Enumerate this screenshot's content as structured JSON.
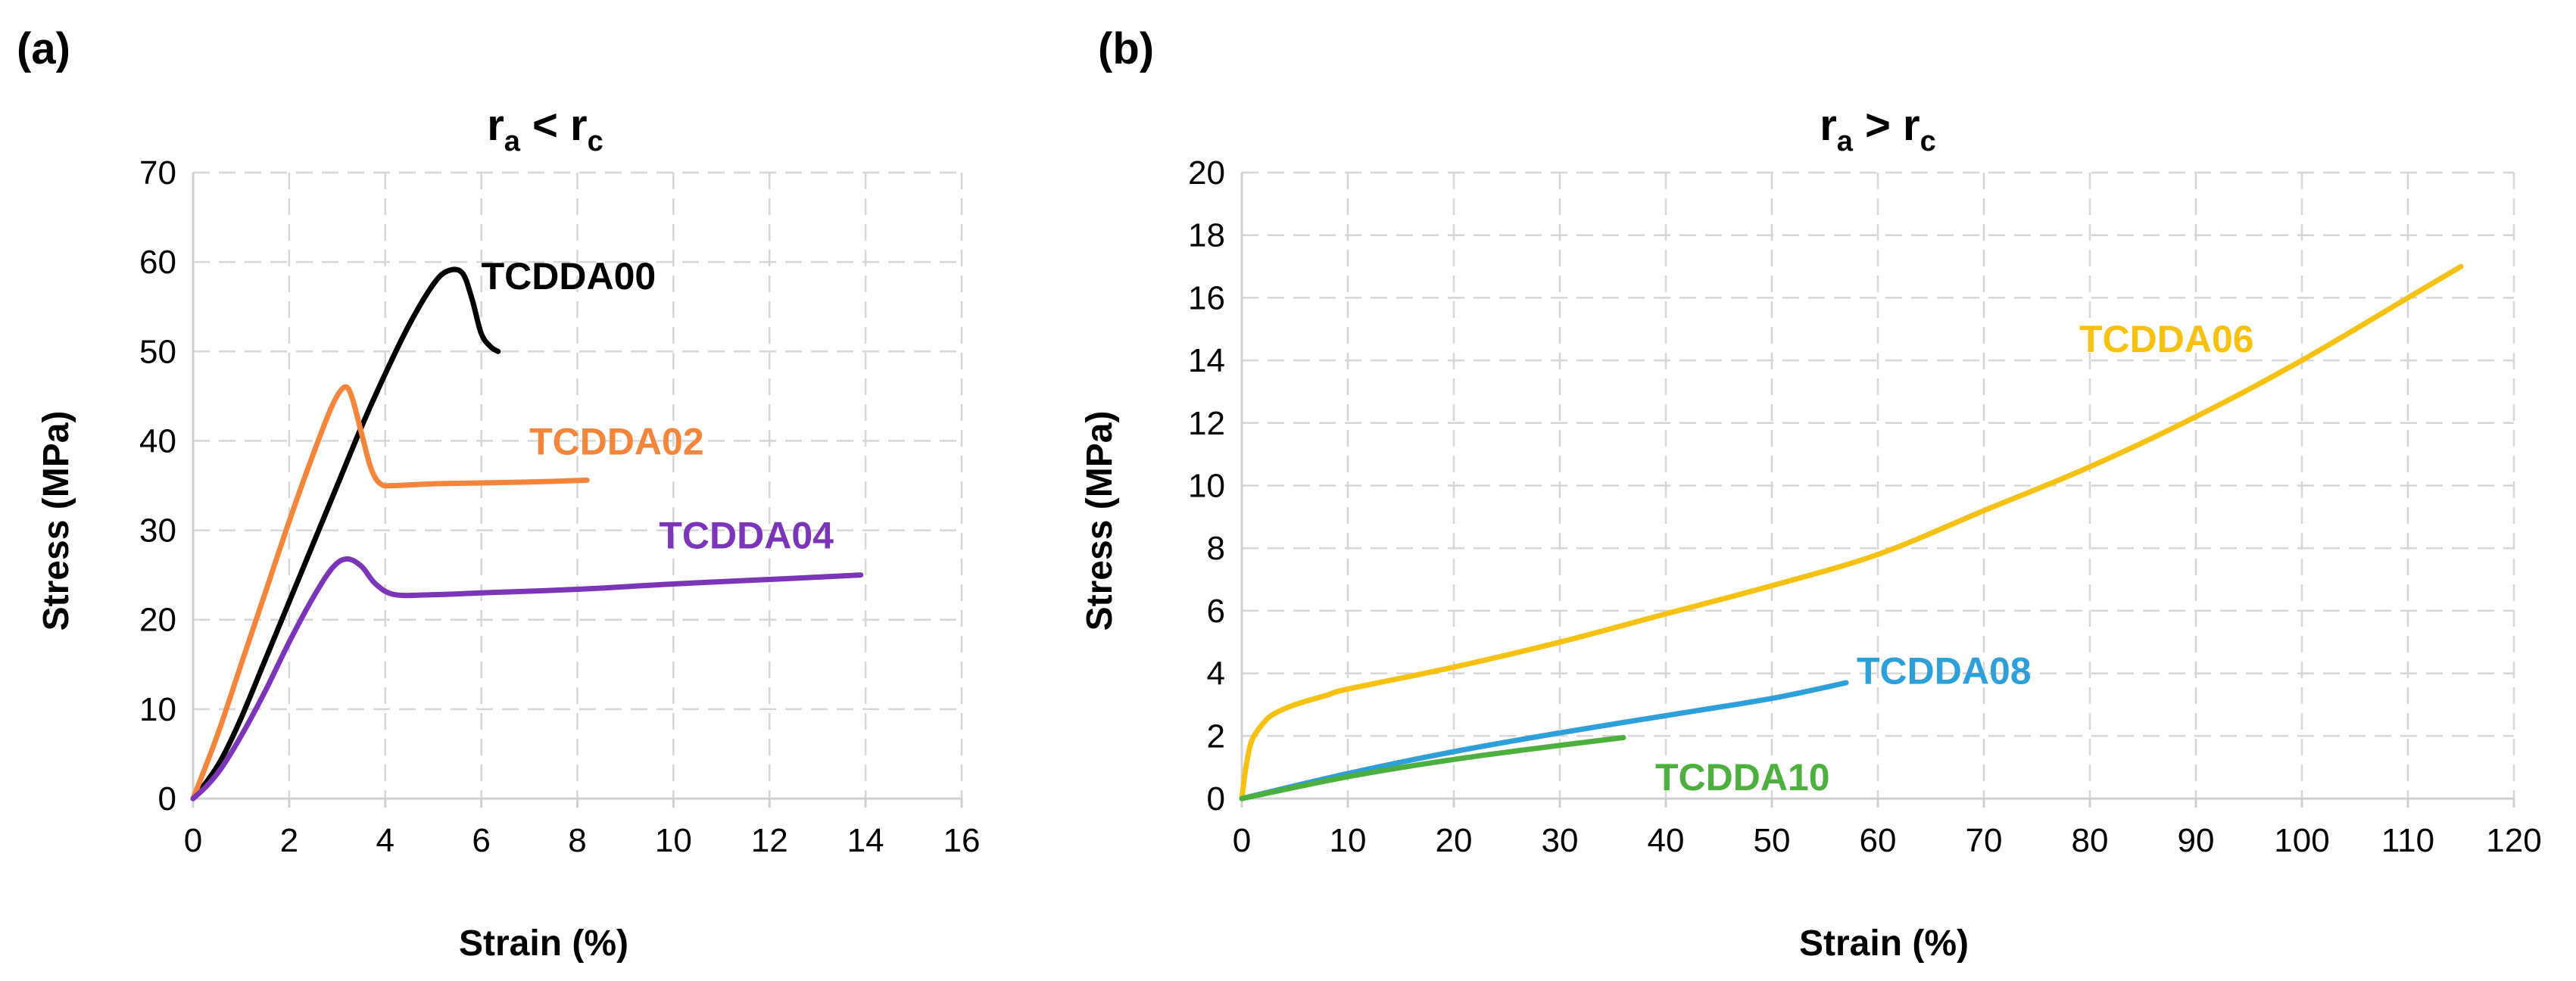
{
  "chart_data": [
    {
      "panel": "(a)",
      "type": "line",
      "title": {
        "main": "r",
        "sub_a": "a",
        "op": " < ",
        "main2": "r",
        "sub_c": "c"
      },
      "xlabel": "Strain (%)",
      "ylabel": "Stress (MPa)",
      "xlim": [
        0,
        16
      ],
      "ylim": [
        0,
        70
      ],
      "xticks": [
        0,
        2,
        4,
        6,
        8,
        10,
        12,
        14,
        16
      ],
      "yticks": [
        0,
        10,
        20,
        30,
        40,
        50,
        60,
        70
      ],
      "grid": true,
      "series": [
        {
          "name": "TCDDA00",
          "color": "#000000",
          "x": [
            0,
            0.3,
            0.6,
            1.0,
            1.5,
            2.0,
            2.5,
            3.0,
            3.5,
            4.0,
            4.5,
            5.0,
            5.3,
            5.6,
            5.8,
            6.0,
            6.2,
            6.35
          ],
          "y": [
            0,
            2,
            4.5,
            9,
            15.5,
            22,
            28.5,
            35,
            41.5,
            47.5,
            53,
            57.5,
            59,
            58.8,
            56,
            52,
            50.5,
            50
          ],
          "label": {
            "x": 6.0,
            "y": 58.5
          }
        },
        {
          "name": "TCDDA02",
          "color": "#f4853a",
          "x": [
            0,
            0.5,
            1.0,
            1.5,
            2.0,
            2.5,
            2.9,
            3.15,
            3.3,
            3.5,
            3.7,
            3.9,
            4.2,
            5.0,
            6.0,
            7.0,
            8.2
          ],
          "y": [
            0,
            7,
            15,
            23,
            31,
            38.5,
            44,
            46,
            45,
            41,
            37,
            35.2,
            35,
            35.2,
            35.3,
            35.4,
            35.6
          ],
          "label": {
            "x": 7.0,
            "y": 40
          }
        },
        {
          "name": "TCDDA04",
          "color": "#7b35b8",
          "x": [
            0,
            0.3,
            0.6,
            1.0,
            1.5,
            2.0,
            2.5,
            2.9,
            3.2,
            3.5,
            3.8,
            4.2,
            5.0,
            6.0,
            8.0,
            10.0,
            12.0,
            13.9
          ],
          "y": [
            0,
            1.5,
            3.5,
            7,
            12,
            17.5,
            22.5,
            25.8,
            26.8,
            26,
            24,
            22.8,
            22.8,
            23,
            23.4,
            24,
            24.5,
            25
          ],
          "label": {
            "x": 9.7,
            "y": 29.5
          }
        }
      ]
    },
    {
      "panel": "(b)",
      "type": "line",
      "title": {
        "main": "r",
        "sub_a": "a",
        "op": " > ",
        "main2": "r",
        "sub_c": "c"
      },
      "xlabel": "Strain (%)",
      "ylabel": "Stress (MPa)",
      "xlim": [
        0,
        120
      ],
      "ylim": [
        0,
        20
      ],
      "xticks": [
        0,
        10,
        20,
        30,
        40,
        50,
        60,
        70,
        80,
        90,
        100,
        110,
        120
      ],
      "yticks": [
        0,
        2,
        4,
        6,
        8,
        10,
        12,
        14,
        16,
        18,
        20
      ],
      "grid": true,
      "series": [
        {
          "name": "TCDDA06",
          "color": "#f6c20f",
          "x": [
            0,
            0.3,
            0.6,
            1,
            2,
            3,
            5,
            8,
            10,
            20,
            30,
            40,
            50,
            60,
            70,
            80,
            90,
            100,
            110,
            115
          ],
          "y": [
            0,
            0.8,
            1.4,
            1.9,
            2.4,
            2.7,
            3.0,
            3.3,
            3.5,
            4.2,
            5.0,
            5.9,
            6.8,
            7.8,
            9.2,
            10.6,
            12.2,
            14.0,
            16.0,
            17.0
          ],
          "label": {
            "x": 79,
            "y": 14.7
          }
        },
        {
          "name": "TCDDA08",
          "color": "#2e9fd8",
          "x": [
            0,
            10,
            20,
            30,
            40,
            50,
            57
          ],
          "y": [
            0,
            0.8,
            1.5,
            2.1,
            2.65,
            3.2,
            3.7
          ],
          "label": {
            "x": 58,
            "y": 4.1
          }
        },
        {
          "name": "TCDDA10",
          "color": "#4caf3e",
          "x": [
            0,
            10,
            20,
            30,
            36
          ],
          "y": [
            0,
            0.7,
            1.25,
            1.7,
            1.95
          ],
          "label": {
            "x": 39,
            "y": 0.7
          }
        }
      ]
    }
  ]
}
